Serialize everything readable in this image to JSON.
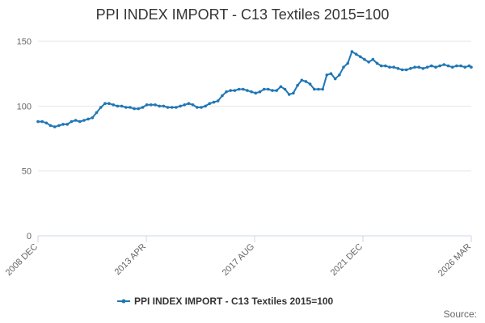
{
  "chart_data": {
    "type": "line",
    "title": "PPI INDEX IMPORT - C13 Textiles 2015=100",
    "xlabel": "",
    "ylabel": "",
    "ylim": [
      0,
      160
    ],
    "yticks": [
      0,
      50,
      100,
      150
    ],
    "x_tick_labels": [
      "2008 DEC",
      "2013 APR",
      "2017 AUG",
      "2021 DEC",
      "2026 MAR"
    ],
    "grid": true,
    "legend_position": "bottom",
    "credits": "Source:",
    "colors": {
      "line": "#1f77b4",
      "marker": "#1f77b4",
      "grid": "#e6e6e6",
      "axis": "#ccd6eb"
    },
    "series": [
      {
        "name": "PPI INDEX IMPORT - C13 Textiles 2015=100",
        "marker_icon": "circle-marker",
        "x": [
          "2008-12",
          "2009-02",
          "2009-04",
          "2009-06",
          "2009-08",
          "2009-10",
          "2009-12",
          "2010-02",
          "2010-04",
          "2010-06",
          "2010-08",
          "2010-10",
          "2010-12",
          "2011-02",
          "2011-04",
          "2011-06",
          "2011-08",
          "2011-10",
          "2011-12",
          "2012-02",
          "2012-04",
          "2012-06",
          "2012-08",
          "2012-10",
          "2012-12",
          "2013-02",
          "2013-04",
          "2013-06",
          "2013-08",
          "2013-10",
          "2013-12",
          "2014-02",
          "2014-04",
          "2014-06",
          "2014-08",
          "2014-10",
          "2014-12",
          "2015-02",
          "2015-04",
          "2015-06",
          "2015-08",
          "2015-10",
          "2015-12",
          "2016-02",
          "2016-04",
          "2016-06",
          "2016-08",
          "2016-10",
          "2016-12",
          "2017-02",
          "2017-04",
          "2017-06",
          "2017-08",
          "2017-10",
          "2017-12",
          "2018-02",
          "2018-04",
          "2018-06",
          "2018-08",
          "2018-10",
          "2018-12",
          "2019-02",
          "2019-04",
          "2019-06",
          "2019-08",
          "2019-10",
          "2019-12",
          "2020-02",
          "2020-04",
          "2020-06",
          "2020-08",
          "2020-10",
          "2020-12",
          "2021-02",
          "2021-04",
          "2021-06",
          "2021-08",
          "2021-10",
          "2021-12",
          "2022-02",
          "2022-04",
          "2022-06",
          "2022-08",
          "2022-10",
          "2022-12",
          "2023-02",
          "2023-04",
          "2023-06",
          "2023-08",
          "2023-10",
          "2023-12",
          "2024-02",
          "2024-04",
          "2024-06",
          "2024-08",
          "2024-10",
          "2024-12",
          "2025-02",
          "2025-04",
          "2025-06",
          "2025-08",
          "2025-10",
          "2025-12",
          "2026-02",
          "2026-03"
        ],
        "values": [
          88,
          88,
          87,
          85,
          84,
          85,
          86,
          86,
          88,
          89,
          88,
          89,
          90,
          91,
          95,
          99,
          102,
          102,
          101,
          100,
          100,
          99,
          99,
          98,
          98,
          99,
          101,
          101,
          101,
          100,
          100,
          99,
          99,
          99,
          100,
          101,
          102,
          101,
          99,
          99,
          100,
          102,
          103,
          104,
          108,
          111,
          112,
          112,
          113,
          113,
          112,
          111,
          110,
          111,
          113,
          113,
          112,
          112,
          115,
          113,
          109,
          110,
          116,
          120,
          119,
          117,
          113,
          113,
          113,
          124,
          125,
          121,
          124,
          130,
          133,
          142,
          140,
          138,
          136,
          134,
          136,
          133,
          131,
          131,
          130,
          130,
          129,
          128,
          128,
          129,
          130,
          130,
          129,
          130,
          131,
          130,
          131,
          132,
          131,
          130,
          131,
          131,
          130,
          131,
          130
        ]
      }
    ]
  }
}
